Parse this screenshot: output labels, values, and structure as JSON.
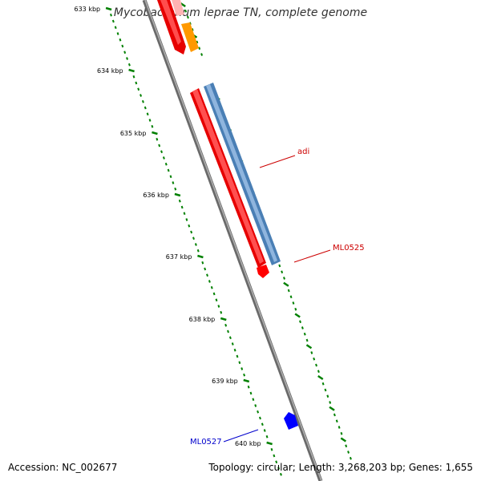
{
  "title": "Mycobacterium leprae TN, complete genome",
  "accession": "Accession: NC_002677",
  "summary": "Topology: circular; Length: 3,268,203 bp; Genes: 1,655",
  "scale_labels": [
    "633 kbp",
    "634 kbp",
    "635 kbp",
    "636 kbp",
    "637 kbp",
    "638 kbp",
    "639 kbp",
    "640 kbp"
  ],
  "genes": [
    {
      "name": "adi",
      "color": "#cc0000"
    },
    {
      "name": "ML0525",
      "color": "#cc0000"
    },
    {
      "name": "ML0527",
      "color": "#0000cc"
    }
  ],
  "colors": {
    "forward_gene": "#ff0000",
    "orf": "#5b8fc7",
    "misc": "#ff9900",
    "reverse_gene": "#0000ff",
    "ticks": "#008000",
    "backbone": "#8a8a8a"
  }
}
